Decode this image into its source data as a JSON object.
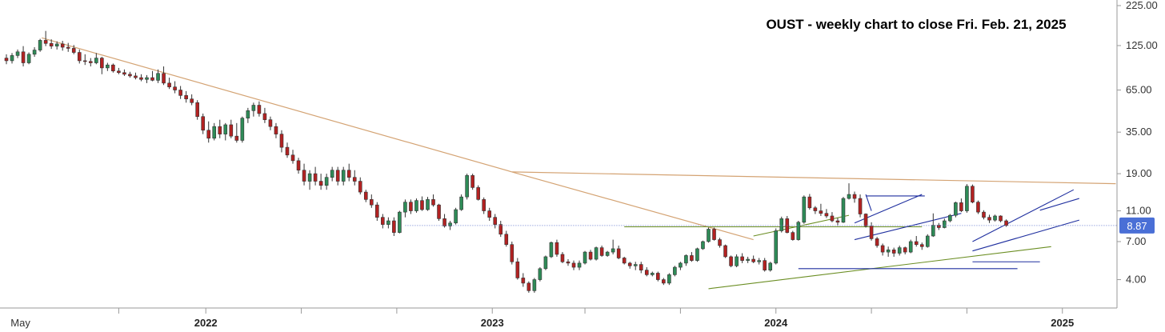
{
  "chart_data": {
    "type": "candlestick",
    "title": "OUST - weekly chart to close Fri. Feb. 21, 2025",
    "y_scale": "log",
    "ylim": [
      3.0,
      225.0
    ],
    "y_ticks": [
      "225.00",
      "125.00",
      "65.00",
      "35.00",
      "19.00",
      "11.00",
      "7.00",
      "4.00"
    ],
    "x_labels": [
      {
        "label": "May",
        "bold": false
      },
      {
        "label": "2022",
        "bold": true
      },
      {
        "label": "2023",
        "bold": true
      },
      {
        "label": "2024",
        "bold": true
      },
      {
        "label": "2025",
        "bold": true
      }
    ],
    "last_price": "8.87",
    "colors": {
      "up": "#2e8b57",
      "down": "#b22222",
      "wick": "#333333",
      "trend_orange": "#d4a373",
      "trend_green": "#6b8e23",
      "channel_blue": "#1f2f9f",
      "last_price_bg": "#4a6fd6",
      "last_price_line": "#6a7fd0"
    },
    "series": [
      {
        "name": "price",
        "values": [
          [
            104,
            110,
            95,
            100
          ],
          [
            100,
            112,
            96,
            108
          ],
          [
            108,
            118,
            104,
            114
          ],
          [
            114,
            124,
            92,
            97
          ],
          [
            97,
            113,
            95,
            110
          ],
          [
            110,
            122,
            106,
            117
          ],
          [
            117,
            138,
            114,
            135
          ],
          [
            135,
            155,
            124,
            129
          ],
          [
            129,
            137,
            119,
            124
          ],
          [
            124,
            133,
            118,
            128
          ],
          [
            128,
            134,
            116,
            122
          ],
          [
            122,
            130,
            114,
            120
          ],
          [
            120,
            126,
            110,
            113
          ],
          [
            113,
            118,
            96,
            100
          ],
          [
            100,
            110,
            94,
            99
          ],
          [
            99,
            104,
            92,
            97
          ],
          [
            97,
            112,
            95,
            104
          ],
          [
            104,
            106,
            82,
            90
          ],
          [
            90,
            97,
            86,
            94
          ],
          [
            94,
            96,
            84,
            86
          ],
          [
            86,
            90,
            82,
            84
          ],
          [
            84,
            88,
            80,
            82
          ],
          [
            82,
            85,
            78,
            80
          ],
          [
            80,
            84,
            76,
            78
          ],
          [
            78,
            82,
            74,
            76
          ],
          [
            76,
            81,
            72,
            78
          ],
          [
            78,
            86,
            74,
            75
          ],
          [
            75,
            88,
            72,
            83
          ],
          [
            83,
            92,
            70,
            72
          ],
          [
            72,
            78,
            66,
            68
          ],
          [
            68,
            74,
            62,
            65
          ],
          [
            65,
            69,
            57,
            60
          ],
          [
            60,
            64,
            54,
            57
          ],
          [
            57,
            61,
            52,
            54
          ],
          [
            54,
            56,
            42,
            44
          ],
          [
            44,
            46,
            34,
            36
          ],
          [
            36,
            41,
            30,
            32
          ],
          [
            32,
            40,
            31,
            38
          ],
          [
            38,
            42,
            32,
            34
          ],
          [
            34,
            40,
            31,
            39
          ],
          [
            39,
            42,
            32,
            33
          ],
          [
            33,
            40,
            30,
            31
          ],
          [
            31,
            44,
            30,
            43
          ],
          [
            43,
            50,
            40,
            48
          ],
          [
            48,
            54,
            44,
            52
          ],
          [
            52,
            55,
            44,
            46
          ],
          [
            46,
            50,
            40,
            42
          ],
          [
            42,
            44,
            36,
            38
          ],
          [
            38,
            40,
            32,
            34
          ],
          [
            34,
            36,
            26,
            28
          ],
          [
            28,
            30,
            24,
            25
          ],
          [
            25,
            27,
            22,
            23
          ],
          [
            23,
            24,
            19,
            20
          ],
          [
            20,
            22,
            16,
            17
          ],
          [
            17,
            20,
            15,
            19
          ],
          [
            19,
            21,
            16,
            17
          ],
          [
            17,
            19,
            15,
            16
          ],
          [
            16,
            19,
            15,
            18
          ],
          [
            18,
            21,
            17,
            20
          ],
          [
            20,
            21,
            16,
            17
          ],
          [
            17,
            21,
            16,
            20
          ],
          [
            20,
            22,
            17,
            18
          ],
          [
            18,
            20,
            16,
            17
          ],
          [
            17,
            18,
            14,
            14.5
          ],
          [
            14.5,
            15,
            12.5,
            13
          ],
          [
            13,
            14,
            11.5,
            12
          ],
          [
            12,
            12.5,
            9.5,
            10
          ],
          [
            10,
            10.5,
            8.5,
            9
          ],
          [
            9,
            10,
            8.5,
            9.5
          ],
          [
            9.5,
            10,
            7.6,
            8
          ],
          [
            8,
            11,
            7.9,
            10.8
          ],
          [
            10.8,
            13,
            10,
            12.5
          ],
          [
            12.5,
            13,
            10.5,
            11
          ],
          [
            11,
            13.2,
            10.7,
            12.8
          ],
          [
            12.8,
            13.6,
            11,
            11.2
          ],
          [
            11.2,
            13.5,
            11,
            13
          ],
          [
            13,
            14,
            11.7,
            12
          ],
          [
            12,
            12.2,
            9.5,
            9.8
          ],
          [
            9.8,
            10.5,
            8.6,
            8.8
          ],
          [
            8.8,
            9.5,
            8.3,
            9.2
          ],
          [
            9.2,
            11.5,
            9,
            11.2
          ],
          [
            11.2,
            14,
            11,
            13.5
          ],
          [
            13.5,
            19,
            13,
            18.5
          ],
          [
            18.5,
            19,
            15,
            15.5
          ],
          [
            15.5,
            16,
            12.8,
            13
          ],
          [
            13,
            13.4,
            10.5,
            11
          ],
          [
            11,
            11.5,
            9.5,
            10
          ],
          [
            10,
            10.5,
            8.5,
            9
          ],
          [
            9,
            9.5,
            7.5,
            7.8
          ],
          [
            7.8,
            8.2,
            6.5,
            6.7
          ],
          [
            6.7,
            7,
            5,
            5.2
          ],
          [
            5.2,
            5.5,
            4,
            4.1
          ],
          [
            4.1,
            4.4,
            3.6,
            3.8
          ],
          [
            3.8,
            3.9,
            3.3,
            3.4
          ],
          [
            3.4,
            4.1,
            3.3,
            4
          ],
          [
            4,
            4.8,
            3.9,
            4.7
          ],
          [
            4.7,
            5.7,
            4.6,
            5.6
          ],
          [
            5.6,
            7,
            5.5,
            6.9
          ],
          [
            6.9,
            7.2,
            5.6,
            5.8
          ],
          [
            5.8,
            6,
            5.1,
            5.2
          ],
          [
            5.2,
            5.4,
            4.9,
            5.1
          ],
          [
            5.1,
            5.3,
            4.6,
            4.8
          ],
          [
            4.8,
            5.3,
            4.6,
            5.1
          ],
          [
            5.1,
            6.1,
            5,
            6
          ],
          [
            6,
            6.2,
            5.3,
            5.4
          ],
          [
            5.4,
            6.5,
            5.3,
            6.4
          ],
          [
            6.4,
            6.6,
            5.6,
            5.7
          ],
          [
            5.7,
            6.1,
            5.6,
            6
          ],
          [
            6,
            7.2,
            5.8,
            6.3
          ],
          [
            6.3,
            6.6,
            5.4,
            5.5
          ],
          [
            5.5,
            5.6,
            5,
            5.1
          ],
          [
            5.1,
            5.2,
            4.7,
            4.9
          ],
          [
            4.9,
            5.2,
            4.6,
            5
          ],
          [
            5,
            5.2,
            4.4,
            4.6
          ],
          [
            4.6,
            4.8,
            4.2,
            4.3
          ],
          [
            4.3,
            4.5,
            4.2,
            4.4
          ],
          [
            4.4,
            4.5,
            3.9,
            4.0
          ],
          [
            4,
            4.1,
            3.7,
            3.8
          ],
          [
            3.8,
            4.4,
            3.7,
            4.3
          ],
          [
            4.3,
            4.9,
            4.2,
            4.8
          ],
          [
            4.8,
            5.2,
            4.6,
            5.1
          ],
          [
            5.1,
            5.8,
            4.9,
            5.7
          ],
          [
            5.7,
            6,
            5.2,
            5.3
          ],
          [
            5.3,
            6.4,
            5.2,
            6.3
          ],
          [
            6.3,
            7.1,
            6.2,
            7
          ],
          [
            7,
            8.6,
            6.9,
            8.4
          ],
          [
            8.4,
            8.6,
            7.1,
            7.2
          ],
          [
            7.2,
            7.4,
            6.4,
            6.6
          ],
          [
            6.6,
            6.7,
            5.5,
            5.6
          ],
          [
            5.6,
            5.7,
            4.8,
            4.9
          ],
          [
            4.9,
            5.8,
            4.8,
            5.6
          ],
          [
            5.6,
            5.9,
            5.1,
            5.3
          ],
          [
            5.3,
            5.6,
            5.1,
            5.4
          ],
          [
            5.4,
            5.7,
            5.1,
            5.2
          ],
          [
            5.2,
            5.5,
            5,
            5.3
          ],
          [
            5.3,
            5.5,
            4.5,
            4.6
          ],
          [
            4.6,
            5.2,
            4.5,
            5.1
          ],
          [
            5.1,
            8.5,
            5,
            8.2
          ],
          [
            8.2,
            10.1,
            8,
            9.8
          ],
          [
            9.8,
            10.2,
            7.9,
            8
          ],
          [
            8,
            8.2,
            7.1,
            7.2
          ],
          [
            7.2,
            9.5,
            7.1,
            9.3
          ],
          [
            9.3,
            13.8,
            9.1,
            13.5
          ],
          [
            13.5,
            14.1,
            11.2,
            11.5
          ],
          [
            11.5,
            11.8,
            10.5,
            11
          ],
          [
            11,
            12.2,
            10.2,
            10.6
          ],
          [
            10.6,
            11.3,
            9.9,
            10.2
          ],
          [
            10.2,
            10.8,
            9.3,
            9.5
          ],
          [
            9.5,
            9.9,
            8.8,
            9.3
          ],
          [
            9.3,
            13.5,
            9.2,
            13.2
          ],
          [
            13.2,
            16.5,
            13,
            14
          ],
          [
            14,
            14.6,
            12.4,
            13.2
          ],
          [
            13.2,
            14,
            10,
            10.5
          ],
          [
            10.5,
            10.6,
            8.6,
            8.8
          ],
          [
            8.8,
            9.3,
            7.1,
            7.3
          ],
          [
            7.3,
            7.5,
            6.4,
            6.6
          ],
          [
            6.6,
            6.8,
            5.7,
            6
          ],
          [
            6,
            6.5,
            5.6,
            6.2
          ],
          [
            6.2,
            6.4,
            5.6,
            5.9
          ],
          [
            5.9,
            6.6,
            5.7,
            6.4
          ],
          [
            6.4,
            6.5,
            5.8,
            6
          ],
          [
            6,
            7.2,
            5.9,
            7
          ],
          [
            7,
            7.6,
            6.5,
            6.7
          ],
          [
            6.7,
            6.9,
            6.2,
            6.5
          ],
          [
            6.5,
            7.8,
            6.4,
            7.6
          ],
          [
            7.6,
            10.6,
            7.5,
            8.9
          ],
          [
            8.9,
            9.2,
            8.3,
            8.6
          ],
          [
            8.6,
            9.8,
            8.5,
            9.5
          ],
          [
            9.5,
            10.5,
            9.3,
            10.3
          ],
          [
            10.3,
            12.6,
            10,
            12.4
          ],
          [
            12.4,
            13.2,
            10.8,
            11
          ],
          [
            11,
            16.3,
            10.7,
            15.8
          ],
          [
            15.8,
            16.2,
            12.3,
            12.5
          ],
          [
            12.5,
            12.8,
            10.5,
            10.8
          ],
          [
            10.8,
            11.1,
            9.7,
            10
          ],
          [
            10,
            10.4,
            9.2,
            9.6
          ],
          [
            9.6,
            10.4,
            9.4,
            10.2
          ],
          [
            10.2,
            10.3,
            9.3,
            9.5
          ],
          [
            9.5,
            9.7,
            8.7,
            8.87
          ]
        ]
      },
      {
        "name": "resistance-1",
        "values": [
          [
            140,
            19.5
          ],
          [
            19.5,
            16.4
          ]
        ]
      },
      {
        "name": "resistance-2",
        "values": [
          [
            19.5,
            7.2
          ]
        ]
      },
      {
        "name": "support-green-1",
        "values": [
          [
            3.5,
            6.5
          ]
        ]
      },
      {
        "name": "support-green-2",
        "values": [
          [
            8.7,
            8.7
          ]
        ]
      },
      {
        "name": "channel-blue",
        "values": [
          [
            13.7,
            13.7
          ],
          [
            5.2,
            5.2
          ]
        ]
      }
    ]
  }
}
